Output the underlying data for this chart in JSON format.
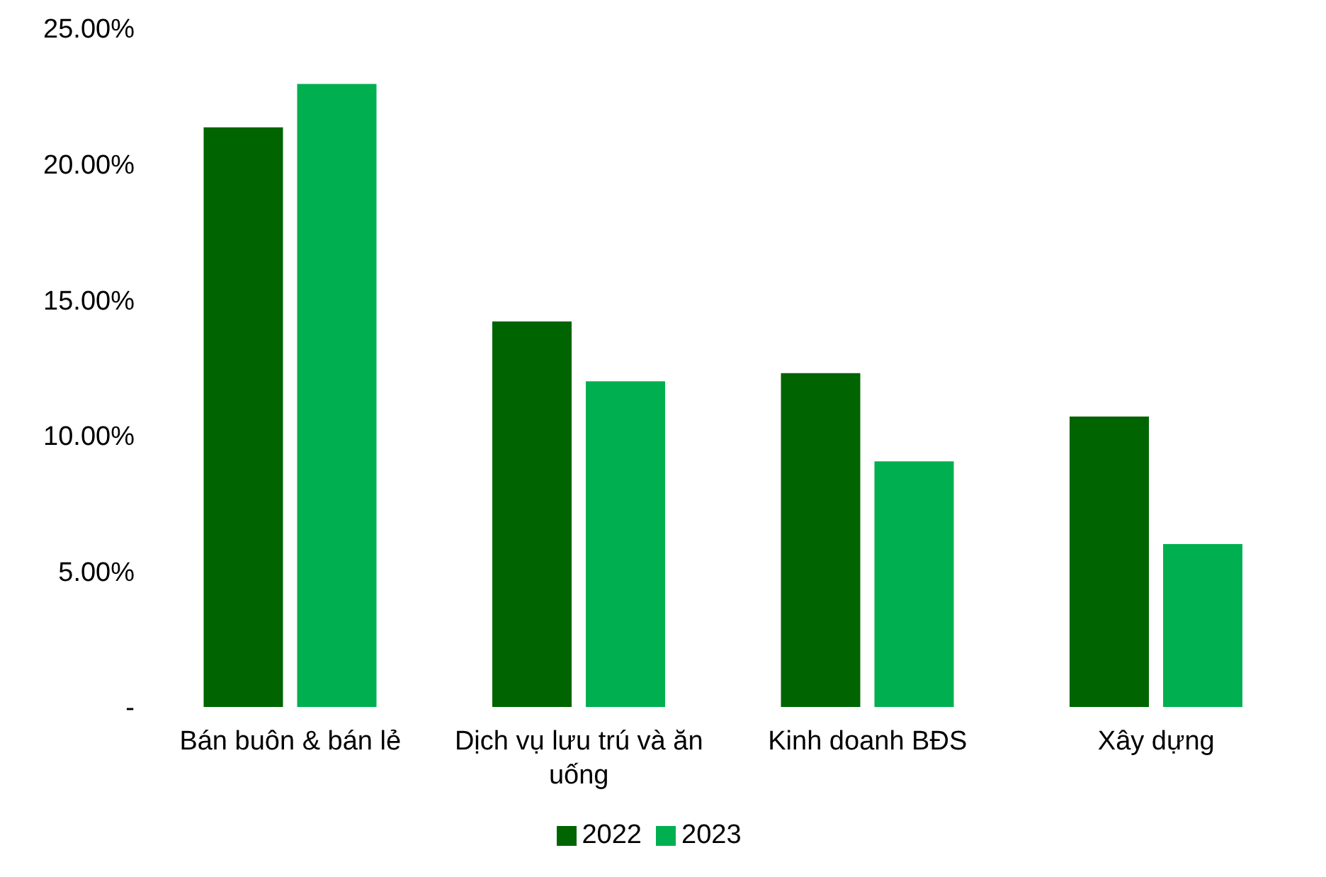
{
  "chart_data": {
    "type": "bar",
    "categories": [
      "Bán buôn & bán lẻ",
      "Dịch vụ lưu trú và ăn uống",
      "Kinh doanh BĐS",
      "Xây dựng"
    ],
    "series": [
      {
        "name": "2022",
        "color": "#006400",
        "values": [
          21.35,
          14.2,
          12.3,
          10.7
        ]
      },
      {
        "name": "2023",
        "color": "#00b050",
        "values": [
          22.95,
          12.0,
          9.05,
          6.0
        ]
      }
    ],
    "ylim": [
      0,
      25
    ],
    "yticks": [
      {
        "value": 0,
        "label": "-"
      },
      {
        "value": 5,
        "label": "5.00%"
      },
      {
        "value": 10,
        "label": "10.00%"
      },
      {
        "value": 15,
        "label": "15.00%"
      },
      {
        "value": 20,
        "label": "20.00%"
      },
      {
        "value": 25,
        "label": "25.00%"
      }
    ],
    "grid": false,
    "legend": "bottom"
  }
}
